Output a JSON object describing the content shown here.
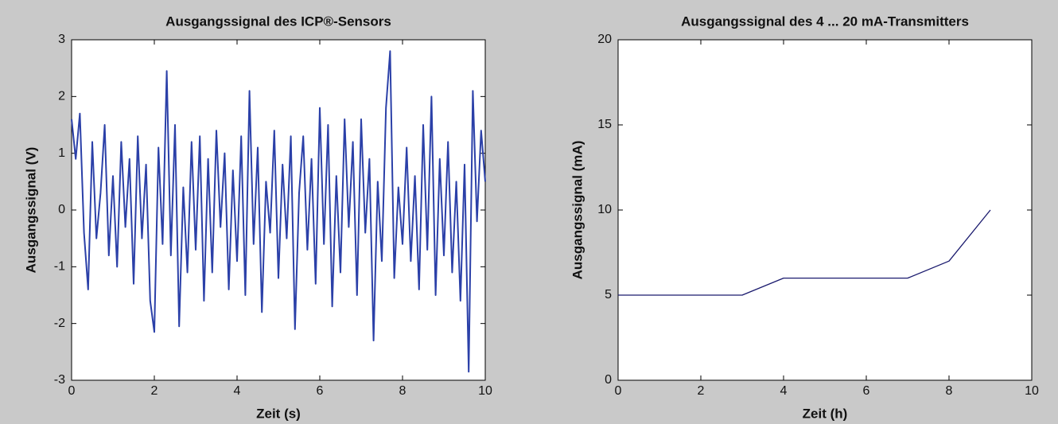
{
  "chart_data": [
    {
      "type": "line",
      "title": "Ausgangssignal des ICP®-Sensors",
      "x_label": "Zeit (s)",
      "y_label": "Ausgangssignal (V)",
      "color": "#2b40a8",
      "x": [
        0,
        0.1,
        0.2,
        0.3,
        0.4,
        0.5,
        0.6,
        0.7,
        0.8,
        0.9,
        1,
        1.1,
        1.2,
        1.3,
        1.4,
        1.5,
        1.6,
        1.7,
        1.8,
        1.9,
        2,
        2.1,
        2.2,
        2.3,
        2.4,
        2.5,
        2.6,
        2.7,
        2.8,
        2.9,
        3,
        3.1,
        3.2,
        3.3,
        3.4,
        3.5,
        3.6,
        3.7,
        3.8,
        3.9,
        4,
        4.1,
        4.2,
        4.3,
        4.4,
        4.5,
        4.6,
        4.7,
        4.8,
        4.9,
        5,
        5.1,
        5.2,
        5.3,
        5.4,
        5.5,
        5.6,
        5.7,
        5.8,
        5.9,
        6,
        6.1,
        6.2,
        6.3,
        6.4,
        6.5,
        6.6,
        6.7,
        6.8,
        6.9,
        7,
        7.1,
        7.2,
        7.3,
        7.4,
        7.5,
        7.6,
        7.7,
        7.8,
        7.9,
        8,
        8.1,
        8.2,
        8.3,
        8.4,
        8.5,
        8.6,
        8.7,
        8.8,
        8.9,
        9,
        9.1,
        9.2,
        9.3,
        9.4,
        9.5,
        9.6,
        9.7,
        9.8,
        9.9,
        10
      ],
      "values": [
        1.6,
        0.9,
        1.7,
        -0.4,
        -1.4,
        1.2,
        -0.5,
        0.3,
        1.5,
        -0.8,
        0.6,
        -1.0,
        1.2,
        -0.3,
        0.9,
        -1.3,
        1.3,
        -0.5,
        0.8,
        -1.6,
        -2.15,
        1.1,
        -0.6,
        2.45,
        -0.8,
        1.5,
        -2.05,
        0.4,
        -1.1,
        1.2,
        -0.7,
        1.3,
        -1.6,
        0.9,
        -1.1,
        1.4,
        -0.3,
        1.0,
        -1.4,
        0.7,
        -0.9,
        1.3,
        -1.5,
        2.1,
        -0.6,
        1.1,
        -1.8,
        0.5,
        -0.4,
        1.4,
        -1.2,
        0.8,
        -0.5,
        1.3,
        -2.1,
        0.3,
        1.3,
        -0.7,
        0.9,
        -1.3,
        1.8,
        -0.6,
        1.5,
        -1.7,
        0.6,
        -1.1,
        1.6,
        -0.3,
        1.2,
        -1.5,
        1.6,
        -0.4,
        0.9,
        -2.3,
        0.5,
        -0.9,
        1.8,
        2.8,
        -1.2,
        0.4,
        -0.6,
        1.1,
        -0.9,
        0.6,
        -1.4,
        1.5,
        -0.7,
        2.0,
        -1.5,
        0.9,
        -0.8,
        1.2,
        -1.1,
        0.5,
        -1.6,
        0.8,
        -2.85,
        2.1,
        -0.2,
        1.4,
        0.5
      ],
      "xlim": [
        0,
        10
      ],
      "xticks": [
        0,
        2,
        4,
        6,
        8,
        10
      ],
      "ylim": [
        -3,
        3
      ],
      "yticks": [
        -3,
        -2,
        -1,
        0,
        1,
        2,
        3
      ]
    },
    {
      "type": "line",
      "title": "Ausgangssignal des 4 ... 20 mA-Transmitters",
      "x_label": "Zeit (h)",
      "y_label": "Ausgangssignal (mA)",
      "color": "#1a1a6e",
      "x": [
        0,
        3,
        4,
        7,
        8,
        9
      ],
      "values": [
        5,
        5,
        6,
        6,
        7,
        10
      ],
      "xlim": [
        0,
        10
      ],
      "xticks": [
        0,
        2,
        4,
        6,
        8,
        10
      ],
      "ylim": [
        0,
        20
      ],
      "yticks": [
        0,
        5,
        10,
        15,
        20
      ]
    }
  ]
}
